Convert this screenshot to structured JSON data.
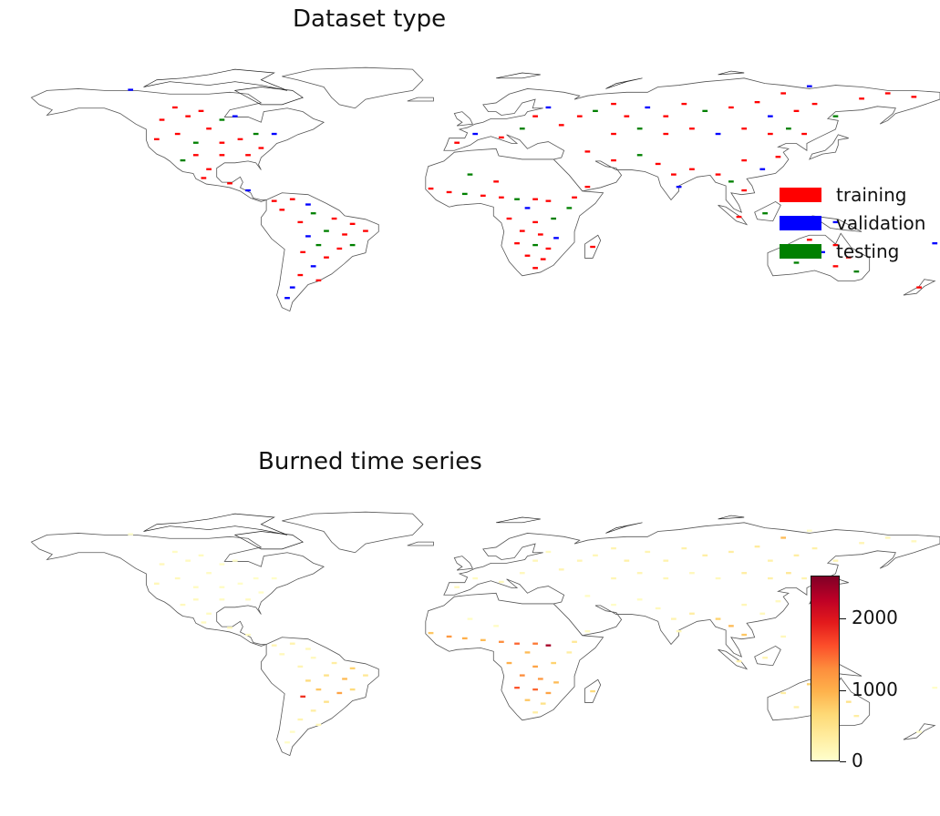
{
  "panels": [
    {
      "title": "Dataset type"
    },
    {
      "title": "Burned time series"
    }
  ],
  "legend": {
    "items": [
      {
        "label": "training",
        "color": "#ff0000"
      },
      {
        "label": "validation",
        "color": "#0000ff"
      },
      {
        "label": "testing",
        "color": "#008000"
      }
    ]
  },
  "colorbar": {
    "min": 0,
    "max": 2600,
    "ticks": [
      {
        "value": 0,
        "label": "0"
      },
      {
        "value": 1000,
        "label": "1000"
      },
      {
        "value": 2000,
        "label": "2000"
      }
    ],
    "colormap": [
      "#ffffcc",
      "#ffeda0",
      "#fed976",
      "#feb24c",
      "#fd8d3c",
      "#fc4e2a",
      "#e31a1c",
      "#bd0026",
      "#800026"
    ]
  },
  "map_data": {
    "projection": "equirectangular",
    "sample_sites": [
      {
        "lon": -130,
        "lat": 70,
        "type": "validation",
        "burned": 0
      },
      {
        "lon": -113,
        "lat": 60,
        "type": "training",
        "burned": 60
      },
      {
        "lon": -103,
        "lat": 58,
        "type": "training",
        "burned": 80
      },
      {
        "lon": -118,
        "lat": 53,
        "type": "training",
        "burned": 120
      },
      {
        "lon": -108,
        "lat": 55,
        "type": "training",
        "burned": 90
      },
      {
        "lon": -95,
        "lat": 53,
        "type": "testing",
        "burned": 40
      },
      {
        "lon": -90,
        "lat": 55,
        "type": "validation",
        "burned": 30
      },
      {
        "lon": -100,
        "lat": 48,
        "type": "training",
        "burned": 70
      },
      {
        "lon": -112,
        "lat": 45,
        "type": "training",
        "burned": 110
      },
      {
        "lon": -120,
        "lat": 42,
        "type": "training",
        "burned": 150
      },
      {
        "lon": -105,
        "lat": 40,
        "type": "testing",
        "burned": 80
      },
      {
        "lon": -95,
        "lat": 40,
        "type": "training",
        "burned": 60
      },
      {
        "lon": -88,
        "lat": 42,
        "type": "training",
        "burned": 30
      },
      {
        "lon": -82,
        "lat": 45,
        "type": "testing",
        "burned": 20
      },
      {
        "lon": -75,
        "lat": 45,
        "type": "validation",
        "burned": 20
      },
      {
        "lon": -80,
        "lat": 37,
        "type": "training",
        "burned": 40
      },
      {
        "lon": -85,
        "lat": 33,
        "type": "training",
        "burned": 90
      },
      {
        "lon": -95,
        "lat": 33,
        "type": "training",
        "burned": 70
      },
      {
        "lon": -105,
        "lat": 33,
        "type": "training",
        "burned": 110
      },
      {
        "lon": -110,
        "lat": 30,
        "type": "testing",
        "burned": 100
      },
      {
        "lon": -100,
        "lat": 25,
        "type": "training",
        "burned": 80
      },
      {
        "lon": -102,
        "lat": 20,
        "type": "training",
        "burned": 90
      },
      {
        "lon": -92,
        "lat": 17,
        "type": "training",
        "burned": 120
      },
      {
        "lon": -85,
        "lat": 13,
        "type": "validation",
        "burned": 90
      },
      {
        "lon": -75,
        "lat": 7,
        "type": "training",
        "burned": 180
      },
      {
        "lon": -68,
        "lat": 8,
        "type": "training",
        "burned": 220
      },
      {
        "lon": -62,
        "lat": 5,
        "type": "validation",
        "burned": 150
      },
      {
        "lon": -72,
        "lat": 2,
        "type": "training",
        "burned": 120
      },
      {
        "lon": -60,
        "lat": 0,
        "type": "testing",
        "burned": 100
      },
      {
        "lon": -52,
        "lat": -3,
        "type": "training",
        "burned": 300
      },
      {
        "lon": -65,
        "lat": -5,
        "type": "training",
        "burned": 180
      },
      {
        "lon": -45,
        "lat": -6,
        "type": "training",
        "burned": 700
      },
      {
        "lon": -55,
        "lat": -10,
        "type": "testing",
        "burned": 500
      },
      {
        "lon": -48,
        "lat": -12,
        "type": "training",
        "burned": 900
      },
      {
        "lon": -62,
        "lat": -13,
        "type": "validation",
        "burned": 600
      },
      {
        "lon": -40,
        "lat": -10,
        "type": "training",
        "burned": 400
      },
      {
        "lon": -58,
        "lat": -18,
        "type": "testing",
        "burned": 800
      },
      {
        "lon": -50,
        "lat": -20,
        "type": "training",
        "burned": 1100
      },
      {
        "lon": -45,
        "lat": -18,
        "type": "testing",
        "burned": 600
      },
      {
        "lon": -64,
        "lat": -22,
        "type": "training",
        "burned": 1800
      },
      {
        "lon": -55,
        "lat": -25,
        "type": "training",
        "burned": 500
      },
      {
        "lon": -60,
        "lat": -30,
        "type": "validation",
        "burned": 300
      },
      {
        "lon": -65,
        "lat": -35,
        "type": "training",
        "burned": 200
      },
      {
        "lon": -58,
        "lat": -38,
        "type": "training",
        "burned": 150
      },
      {
        "lon": -68,
        "lat": -42,
        "type": "validation",
        "burned": 60
      },
      {
        "lon": -70,
        "lat": -48,
        "type": "validation",
        "burned": 30
      },
      {
        "lon": -15,
        "lat": 14,
        "type": "training",
        "burned": 800
      },
      {
        "lon": -8,
        "lat": 12,
        "type": "training",
        "burned": 1200
      },
      {
        "lon": -2,
        "lat": 11,
        "type": "testing",
        "burned": 1000
      },
      {
        "lon": 5,
        "lat": 10,
        "type": "training",
        "burned": 900
      },
      {
        "lon": 12,
        "lat": 9,
        "type": "training",
        "burned": 1300
      },
      {
        "lon": 18,
        "lat": 8,
        "type": "testing",
        "burned": 1500
      },
      {
        "lon": 25,
        "lat": 8,
        "type": "training",
        "burned": 1400
      },
      {
        "lon": 30,
        "lat": 7,
        "type": "training",
        "burned": 2400
      },
      {
        "lon": 22,
        "lat": 3,
        "type": "validation",
        "burned": 900
      },
      {
        "lon": 15,
        "lat": -3,
        "type": "training",
        "burned": 1000
      },
      {
        "lon": 25,
        "lat": -5,
        "type": "training",
        "burned": 1100
      },
      {
        "lon": 32,
        "lat": -3,
        "type": "testing",
        "burned": 700
      },
      {
        "lon": 20,
        "lat": -10,
        "type": "training",
        "burned": 1300
      },
      {
        "lon": 27,
        "lat": -12,
        "type": "training",
        "burned": 1200
      },
      {
        "lon": 33,
        "lat": -14,
        "type": "validation",
        "burned": 900
      },
      {
        "lon": 18,
        "lat": -17,
        "type": "training",
        "burned": 1600
      },
      {
        "lon": 25,
        "lat": -18,
        "type": "testing",
        "burned": 1500
      },
      {
        "lon": 30,
        "lat": -20,
        "type": "training",
        "burned": 1100
      },
      {
        "lon": 22,
        "lat": -24,
        "type": "training",
        "burned": 800
      },
      {
        "lon": 28,
        "lat": -26,
        "type": "training",
        "burned": 500
      },
      {
        "lon": 25,
        "lat": -31,
        "type": "training",
        "burned": 300
      },
      {
        "lon": 40,
        "lat": 9,
        "type": "training",
        "burned": 400
      },
      {
        "lon": 38,
        "lat": 3,
        "type": "testing",
        "burned": 300
      },
      {
        "lon": 47,
        "lat": -19,
        "type": "training",
        "burned": 600
      },
      {
        "lon": 45,
        "lat": 15,
        "type": "training",
        "burned": 80
      },
      {
        "lon": 10,
        "lat": 18,
        "type": "training",
        "burned": 60
      },
      {
        "lon": 0,
        "lat": 22,
        "type": "testing",
        "burned": 40
      },
      {
        "lon": -5,
        "lat": 40,
        "type": "training",
        "burned": 120
      },
      {
        "lon": 2,
        "lat": 45,
        "type": "validation",
        "burned": 80
      },
      {
        "lon": 12,
        "lat": 43,
        "type": "training",
        "burned": 100
      },
      {
        "lon": 20,
        "lat": 48,
        "type": "testing",
        "burned": 120
      },
      {
        "lon": 25,
        "lat": 55,
        "type": "training",
        "burned": 150
      },
      {
        "lon": 30,
        "lat": 60,
        "type": "validation",
        "burned": 90
      },
      {
        "lon": 35,
        "lat": 50,
        "type": "training",
        "burned": 200
      },
      {
        "lon": 42,
        "lat": 55,
        "type": "training",
        "burned": 180
      },
      {
        "lon": 48,
        "lat": 58,
        "type": "testing",
        "burned": 150
      },
      {
        "lon": 55,
        "lat": 62,
        "type": "training",
        "burned": 200
      },
      {
        "lon": 60,
        "lat": 55,
        "type": "training",
        "burned": 260
      },
      {
        "lon": 68,
        "lat": 60,
        "type": "validation",
        "burned": 180
      },
      {
        "lon": 75,
        "lat": 55,
        "type": "training",
        "burned": 220
      },
      {
        "lon": 82,
        "lat": 62,
        "type": "training",
        "burned": 240
      },
      {
        "lon": 90,
        "lat": 58,
        "type": "testing",
        "burned": 280
      },
      {
        "lon": 100,
        "lat": 60,
        "type": "training",
        "burned": 300
      },
      {
        "lon": 110,
        "lat": 63,
        "type": "training",
        "burned": 350
      },
      {
        "lon": 120,
        "lat": 68,
        "type": "training",
        "burned": 900
      },
      {
        "lon": 115,
        "lat": 55,
        "type": "validation",
        "burned": 260
      },
      {
        "lon": 125,
        "lat": 58,
        "type": "training",
        "burned": 300
      },
      {
        "lon": 132,
        "lat": 62,
        "type": "training",
        "burned": 250
      },
      {
        "lon": 140,
        "lat": 55,
        "type": "testing",
        "burned": 200
      },
      {
        "lon": 150,
        "lat": 65,
        "type": "training",
        "burned": 180
      },
      {
        "lon": 160,
        "lat": 68,
        "type": "training",
        "burned": 150
      },
      {
        "lon": 170,
        "lat": 66,
        "type": "training",
        "burned": 120
      },
      {
        "lon": 130,
        "lat": 72,
        "type": "validation",
        "burned": 60
      },
      {
        "lon": 55,
        "lat": 45,
        "type": "training",
        "burned": 160
      },
      {
        "lon": 65,
        "lat": 48,
        "type": "testing",
        "burned": 180
      },
      {
        "lon": 75,
        "lat": 45,
        "type": "training",
        "burned": 150
      },
      {
        "lon": 85,
        "lat": 48,
        "type": "training",
        "burned": 120
      },
      {
        "lon": 95,
        "lat": 45,
        "type": "validation",
        "burned": 100
      },
      {
        "lon": 105,
        "lat": 48,
        "type": "training",
        "burned": 300
      },
      {
        "lon": 115,
        "lat": 45,
        "type": "training",
        "burned": 250
      },
      {
        "lon": 122,
        "lat": 48,
        "type": "testing",
        "burned": 400
      },
      {
        "lon": 128,
        "lat": 45,
        "type": "training",
        "burned": 200
      },
      {
        "lon": 45,
        "lat": 35,
        "type": "training",
        "burned": 60
      },
      {
        "lon": 55,
        "lat": 30,
        "type": "training",
        "burned": 40
      },
      {
        "lon": 65,
        "lat": 33,
        "type": "testing",
        "burned": 60
      },
      {
        "lon": 72,
        "lat": 28,
        "type": "training",
        "burned": 100
      },
      {
        "lon": 78,
        "lat": 22,
        "type": "training",
        "burned": 200
      },
      {
        "lon": 80,
        "lat": 15,
        "type": "validation",
        "burned": 150
      },
      {
        "lon": 85,
        "lat": 25,
        "type": "training",
        "burned": 300
      },
      {
        "lon": 95,
        "lat": 22,
        "type": "training",
        "burned": 700
      },
      {
        "lon": 100,
        "lat": 18,
        "type": "testing",
        "burned": 900
      },
      {
        "lon": 105,
        "lat": 13,
        "type": "training",
        "burned": 800
      },
      {
        "lon": 105,
        "lat": 30,
        "type": "training",
        "burned": 150
      },
      {
        "lon": 112,
        "lat": 25,
        "type": "validation",
        "burned": 120
      },
      {
        "lon": 118,
        "lat": 32,
        "type": "training",
        "burned": 100
      },
      {
        "lon": 120,
        "lat": 12,
        "type": "training",
        "burned": 120
      },
      {
        "lon": 113,
        "lat": 0,
        "type": "testing",
        "burned": 200
      },
      {
        "lon": 103,
        "lat": -2,
        "type": "training",
        "burned": 250
      },
      {
        "lon": 140,
        "lat": -5,
        "type": "validation",
        "burned": 90
      },
      {
        "lon": 120,
        "lat": -20,
        "type": "training",
        "burned": 300
      },
      {
        "lon": 130,
        "lat": -15,
        "type": "training",
        "burned": 700
      },
      {
        "lon": 135,
        "lat": -22,
        "type": "validation",
        "burned": 400
      },
      {
        "lon": 140,
        "lat": -18,
        "type": "training",
        "burned": 600
      },
      {
        "lon": 145,
        "lat": -25,
        "type": "training",
        "burned": 500
      },
      {
        "lon": 125,
        "lat": -28,
        "type": "testing",
        "burned": 250
      },
      {
        "lon": 140,
        "lat": -30,
        "type": "training",
        "burned": 200
      },
      {
        "lon": 148,
        "lat": -33,
        "type": "testing",
        "burned": 300
      },
      {
        "lon": 172,
        "lat": -42,
        "type": "training",
        "burned": 40
      },
      {
        "lon": 178,
        "lat": -17,
        "type": "validation",
        "burned": 20
      }
    ]
  }
}
